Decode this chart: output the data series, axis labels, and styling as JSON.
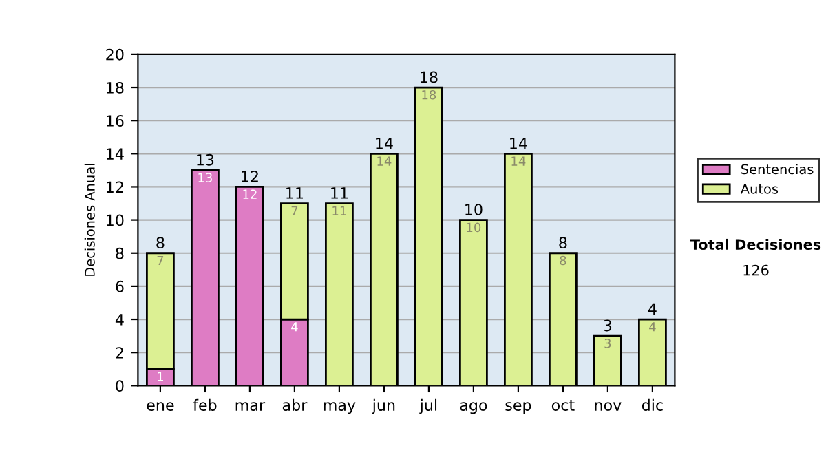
{
  "chart_data": {
    "type": "bar",
    "stacked": true,
    "ylabel": "Decisiones Anual",
    "categories": [
      "ene",
      "feb",
      "mar",
      "abr",
      "may",
      "jun",
      "jul",
      "ago",
      "sep",
      "oct",
      "nov",
      "dic"
    ],
    "series": [
      {
        "name": "Sentencias",
        "color": "#de7cc4",
        "values": [
          1,
          13,
          12,
          4,
          0,
          0,
          0,
          0,
          0,
          0,
          0,
          0
        ],
        "value_labels": [
          "1",
          "13",
          "12",
          "4",
          null,
          null,
          null,
          null,
          null,
          null,
          null,
          null
        ]
      },
      {
        "name": "Autos",
        "color": "#dcf093",
        "values": [
          7,
          0,
          0,
          7,
          11,
          14,
          18,
          10,
          14,
          8,
          3,
          4
        ],
        "value_labels": [
          "7",
          null,
          null,
          "7",
          "11",
          "14",
          "18",
          "10",
          "14",
          "8",
          "3",
          "4"
        ]
      }
    ],
    "totals": [
      "8",
      "13",
      "12",
      "11",
      "11",
      "14",
      "18",
      "10",
      "14",
      "8",
      "3",
      "4"
    ],
    "ylim": [
      0,
      20
    ],
    "yticks": [
      0,
      2,
      4,
      6,
      8,
      10,
      12,
      14,
      16,
      18,
      20
    ],
    "grid": "y",
    "legend": "right",
    "annotations": [
      "Total Decisiones",
      "126"
    ]
  }
}
